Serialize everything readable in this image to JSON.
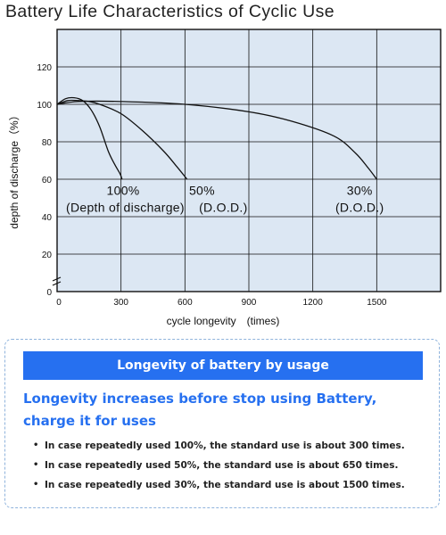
{
  "chart_data": {
    "type": "line",
    "title": "Battery Life Characteristics of Cyclic Use",
    "xlabel": "cycle longevity　(times)",
    "ylabel": "depth of discharge（%）",
    "xlim": [
      0,
      1800
    ],
    "ylim": [
      0,
      140
    ],
    "x_ticks": [
      0,
      300,
      600,
      900,
      1200,
      1500
    ],
    "y_ticks": [
      0,
      20,
      40,
      60,
      80,
      100,
      120
    ],
    "x_tick_labels": [
      "0",
      "300",
      "600",
      "900",
      "1200",
      "1500"
    ],
    "y_tick_labels": [
      "0",
      "20",
      "40",
      "60",
      "80",
      "100",
      "120"
    ],
    "grid": true,
    "axis_break": "y",
    "series": [
      {
        "x": [
          0,
          40,
          80,
          120,
          160,
          200,
          240,
          270,
          295,
          305
        ],
        "y": [
          100,
          103,
          103.5,
          102,
          97,
          88,
          75,
          68,
          63,
          60
        ]
      },
      {
        "x": [
          0,
          50,
          100,
          150,
          200,
          300,
          400,
          500,
          560,
          610
        ],
        "y": [
          100,
          102,
          102,
          101.5,
          100,
          95,
          86,
          75,
          67,
          60
        ]
      },
      {
        "x": [
          0,
          100,
          300,
          600,
          900,
          1100,
          1300,
          1400,
          1460,
          1500
        ],
        "y": [
          100,
          101.5,
          101.5,
          100,
          96,
          91,
          83,
          74,
          66,
          60
        ]
      }
    ],
    "annotations": [
      {
        "text": "100%",
        "x": 310,
        "y": 54
      },
      {
        "text": "(Depth of discharge)",
        "x": 320,
        "y": 45
      },
      {
        "text": "50%",
        "x": 680,
        "y": 54
      },
      {
        "text": "(D.O.D.)",
        "x": 780,
        "y": 45
      },
      {
        "text": "30%",
        "x": 1420,
        "y": 54
      },
      {
        "text": "(D.O.D.)",
        "x": 1420,
        "y": 45
      }
    ]
  },
  "info": {
    "banner": "Longevity of battery by usage",
    "heading": "Longevity increases before stop using Battery, charge it for uses",
    "bullet_symbol": "•",
    "items": [
      "In case repeatedly used 100%, the standard use is about 300 times.",
      "In case repeatedly used 50%, the standard use is about 650 times.",
      "In case repeatedly used 30%, the standard use is about 1500 times."
    ]
  },
  "colors": {
    "plot_bg": "#dce7f3",
    "grid": "#111111",
    "curve": "#111111",
    "banner_bg": "#2670f0",
    "heading": "#2670f0",
    "border": "#8fb3dc"
  }
}
